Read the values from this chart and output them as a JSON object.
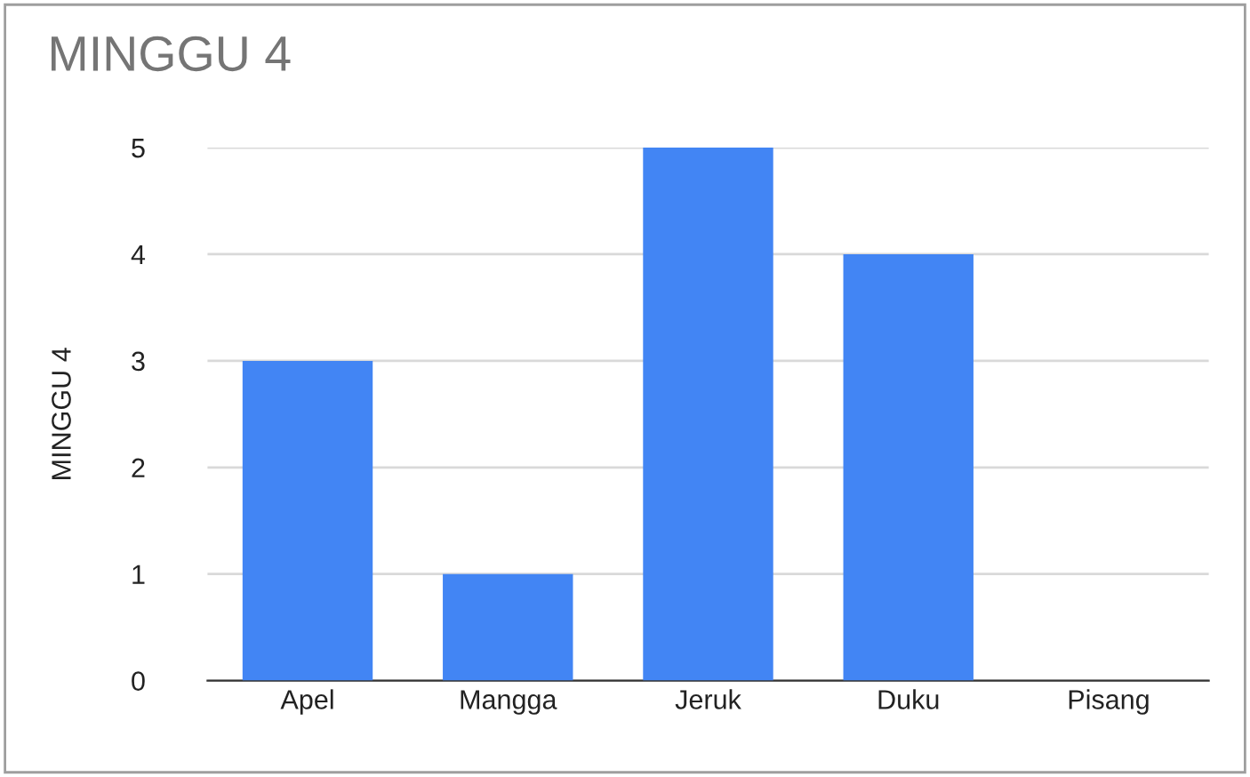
{
  "chart_data": {
    "type": "bar",
    "title": "MINGGU 4",
    "ylabel": "MINGGU 4",
    "categories": [
      "Apel",
      "Mangga",
      "Jeruk",
      "Duku",
      "Pisang"
    ],
    "series": [
      {
        "color": "#4285f4",
        "values": [
          3,
          1,
          5,
          4,
          0
        ]
      }
    ],
    "ylim": [
      0,
      5
    ],
    "yticks": [
      0,
      1,
      2,
      3,
      4,
      5
    ],
    "grid": "y"
  }
}
